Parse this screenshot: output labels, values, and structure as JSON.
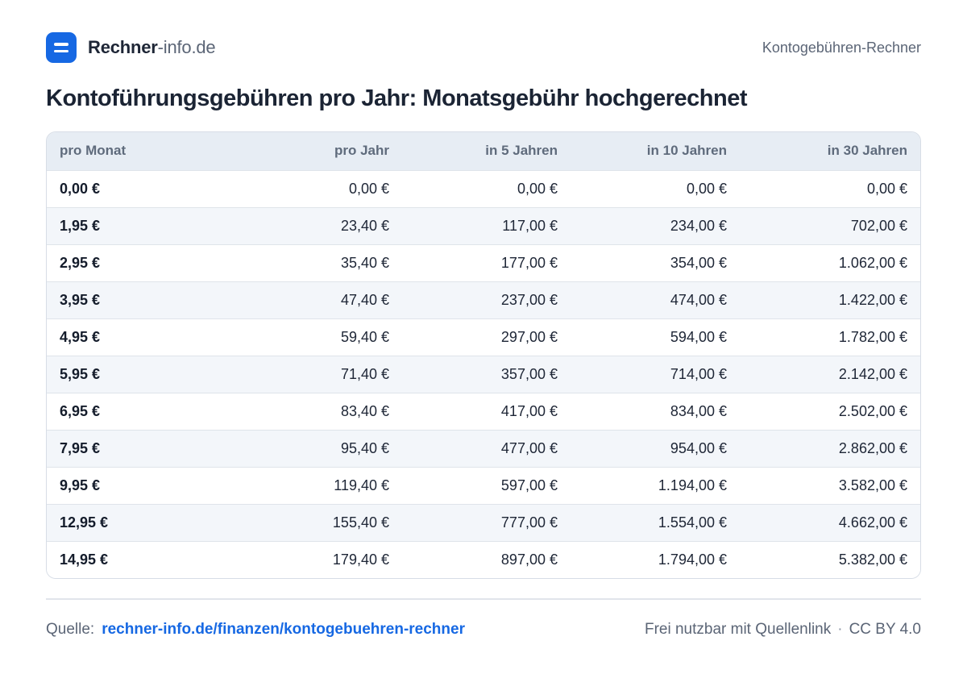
{
  "header": {
    "brand_strong": "Rechner",
    "brand_light": "-info.de",
    "page_label": "Kontogebühren-Rechner",
    "logo_color": "#1668e3"
  },
  "title": "Kontoführungsgebühren pro Jahr: Monatsgebühr hochgerechnet",
  "table": {
    "columns": [
      "pro Monat",
      "pro Jahr",
      "in 5 Jahren",
      "in 10 Jahren",
      "in 30 Jahren"
    ],
    "rows": [
      [
        "0,00 €",
        "0,00 €",
        "0,00 €",
        "0,00 €",
        "0,00 €"
      ],
      [
        "1,95 €",
        "23,40 €",
        "117,00 €",
        "234,00 €",
        "702,00 €"
      ],
      [
        "2,95 €",
        "35,40 €",
        "177,00 €",
        "354,00 €",
        "1.062,00 €"
      ],
      [
        "3,95 €",
        "47,40 €",
        "237,00 €",
        "474,00 €",
        "1.422,00 €"
      ],
      [
        "4,95 €",
        "59,40 €",
        "297,00 €",
        "594,00 €",
        "1.782,00 €"
      ],
      [
        "5,95 €",
        "71,40 €",
        "357,00 €",
        "714,00 €",
        "2.142,00 €"
      ],
      [
        "6,95 €",
        "83,40 €",
        "417,00 €",
        "834,00 €",
        "2.502,00 €"
      ],
      [
        "7,95 €",
        "95,40 €",
        "477,00 €",
        "954,00 €",
        "2.862,00 €"
      ],
      [
        "9,95 €",
        "119,40 €",
        "597,00 €",
        "1.194,00 €",
        "3.582,00 €"
      ],
      [
        "12,95 €",
        "155,40 €",
        "777,00 €",
        "1.554,00 €",
        "4.662,00 €"
      ],
      [
        "14,95 €",
        "179,40 €",
        "897,00 €",
        "1.794,00 €",
        "5.382,00 €"
      ]
    ]
  },
  "footer": {
    "source_label": "Quelle:",
    "source_link": "rechner-info.de/finanzen/kontogebuehren-rechner",
    "license_text": "Frei nutzbar mit Quellenlink",
    "separator": "·",
    "license_name": "CC BY 4.0"
  }
}
